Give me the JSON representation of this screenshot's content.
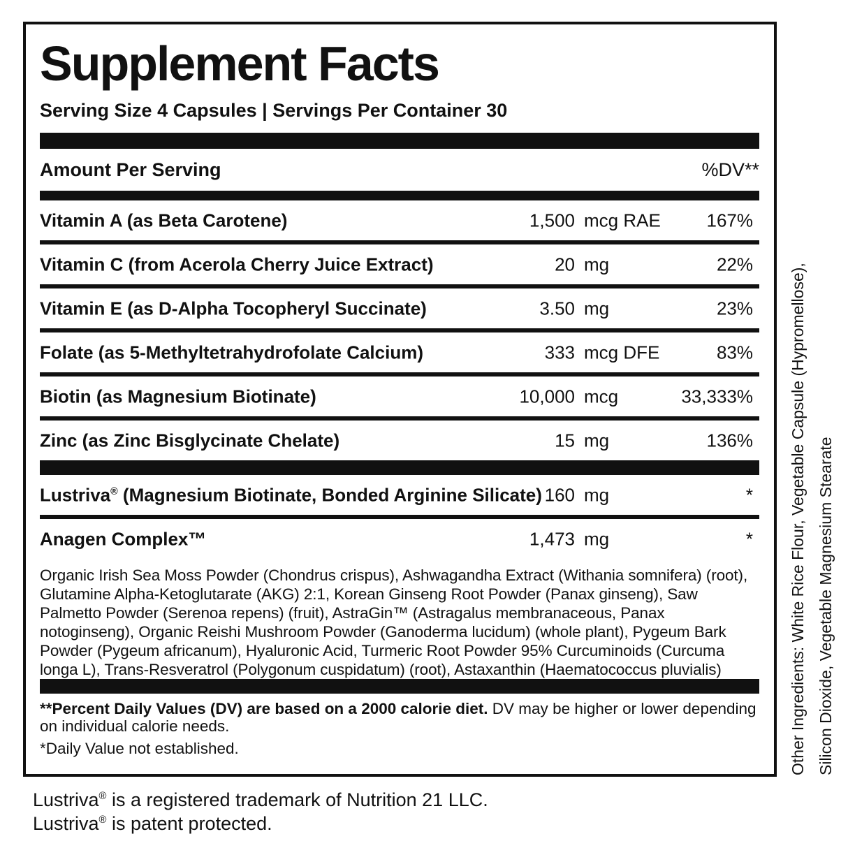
{
  "title": "Supplement Facts",
  "serving_line": "Serving Size 4 Capsules | Servings Per Container 30",
  "header": {
    "amount_label": "Amount Per Serving",
    "dv_label": "%DV**"
  },
  "nutrients": [
    {
      "name": "Vitamin A (as Beta Carotene)",
      "amount": "1,500",
      "unit": "mcg RAE",
      "dv": "167%"
    },
    {
      "name": "Vitamin C (from Acerola Cherry Juice Extract)",
      "amount": "20",
      "unit": "mg",
      "dv": "22%"
    },
    {
      "name": "Vitamin E (as D-Alpha Tocopheryl Succinate)",
      "amount": "3.50",
      "unit": "mg",
      "dv": "23%"
    },
    {
      "name": "Folate (as 5-Methyltetrahydrofolate Calcium)",
      "amount": "333",
      "unit": "mcg DFE",
      "dv": "83%"
    },
    {
      "name": "Biotin (as Magnesium Biotinate)",
      "amount": "10,000",
      "unit": "mcg",
      "dv": "33,333%"
    },
    {
      "name": "Zinc (as Zinc Bisglycinate Chelate)",
      "amount": "15",
      "unit": "mg",
      "dv": "136%"
    }
  ],
  "proprietary": [
    {
      "name": "Lustriva® (Magnesium Biotinate, Bonded Arginine Silicate)",
      "amount": "160",
      "unit": "mg",
      "dv": "*"
    },
    {
      "name": "Anagen Complex™",
      "amount": "1,473",
      "unit": "mg",
      "dv": "*"
    }
  ],
  "anagen_ingredients": "Organic Irish Sea Moss Powder (Chondrus crispus), Ashwagandha Extract (Withania somnifera) (root), Glutamine Alpha-Ketoglutarate (AKG) 2:1, Korean Ginseng Root Powder (Panax ginseng), Saw Palmetto Powder (Serenoa repens) (fruit), AstraGin™ (Astragalus membranaceous, Panax notoginseng), Organic Reishi Mushroom Powder (Ganoderma lucidum) (whole plant), Pygeum Bark Powder (Pygeum africanum), Hyaluronic Acid, Turmeric Root Powder 95% Curcuminoids (Curcuma longa L), Trans-Resveratrol (Polygonum cuspidatum) (root), Astaxanthin (Haematococcus pluvialis)",
  "footnotes": {
    "dv_bold": "**Percent Daily Values (DV) are based on a 2000 calorie diet.",
    "dv_rest": " DV may be higher or lower depending on individual calorie needs.",
    "not_established": "*Daily Value not established."
  },
  "side_text": {
    "line1": "Other Ingredients: White Rice Flour, Vegetable Capsule (Hypromellose),",
    "line2": "Silicon Dioxide, Vegetable Magnesium Stearate"
  },
  "footer": {
    "line1": "Lustriva® is a registered trademark of Nutrition 21 LLC.",
    "line2": "Lustriva® is patent protected."
  },
  "colors": {
    "ink": "#111111",
    "background": "#ffffff"
  }
}
